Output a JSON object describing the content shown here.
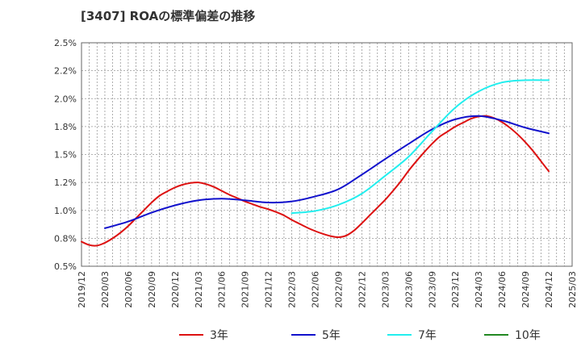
{
  "chart_data": {
    "type": "line",
    "title": "[3407]  ROAの標準偏差の推移",
    "xlabel": "",
    "ylabel": "",
    "x_ticks": [
      "2019/12",
      "2020/03",
      "2020/06",
      "2020/09",
      "2020/12",
      "2021/03",
      "2021/06",
      "2021/09",
      "2021/12",
      "2022/03",
      "2022/06",
      "2022/09",
      "2022/12",
      "2023/03",
      "2023/06",
      "2023/09",
      "2023/12",
      "2024/03",
      "2024/06",
      "2024/09",
      "2024/12",
      "2025/03"
    ],
    "y_ticks": [
      "0.5%",
      "0.8%",
      "1.0%",
      "1.2%",
      "1.5%",
      "1.8%",
      "2.0%",
      "2.2%",
      "2.5%"
    ],
    "ylim": [
      0.5,
      2.5
    ],
    "grid": true,
    "legend_position": "bottom",
    "series": [
      {
        "name": "3年",
        "color": "#dd1111",
        "x": [
          "2019/12",
          "2020/01",
          "2020/02",
          "2020/03",
          "2020/04",
          "2020/05",
          "2020/06",
          "2020/07",
          "2020/08",
          "2020/09",
          "2020/10",
          "2020/11",
          "2020/12",
          "2021/01",
          "2021/02",
          "2021/03",
          "2021/04",
          "2021/05",
          "2021/06",
          "2021/07",
          "2021/08",
          "2021/09",
          "2021/10",
          "2021/11",
          "2021/12",
          "2022/01",
          "2022/02",
          "2022/03",
          "2022/04",
          "2022/05",
          "2022/06",
          "2022/07",
          "2022/08",
          "2022/09",
          "2022/10",
          "2022/11",
          "2022/12",
          "2023/01",
          "2023/02",
          "2023/03",
          "2023/04",
          "2023/05",
          "2023/06",
          "2023/07",
          "2023/08",
          "2023/09",
          "2023/10",
          "2023/11",
          "2023/12",
          "2024/01",
          "2024/02",
          "2024/03",
          "2024/04",
          "2024/05",
          "2024/06",
          "2024/07",
          "2024/08",
          "2024/09",
          "2024/10",
          "2024/11",
          "2024/12"
        ],
        "values": [
          0.72,
          0.69,
          0.685,
          0.71,
          0.75,
          0.8,
          0.86,
          0.93,
          1.0,
          1.07,
          1.13,
          1.17,
          1.205,
          1.23,
          1.245,
          1.25,
          1.235,
          1.21,
          1.175,
          1.14,
          1.11,
          1.08,
          1.055,
          1.03,
          1.01,
          0.985,
          0.955,
          0.915,
          0.88,
          0.845,
          0.815,
          0.79,
          0.77,
          0.76,
          0.775,
          0.82,
          0.885,
          0.955,
          1.025,
          1.095,
          1.175,
          1.26,
          1.355,
          1.44,
          1.52,
          1.595,
          1.66,
          1.705,
          1.75,
          1.785,
          1.82,
          1.84,
          1.845,
          1.825,
          1.79,
          1.74,
          1.68,
          1.61,
          1.53,
          1.44,
          1.35
        ]
      },
      {
        "name": "5年",
        "color": "#1111cc",
        "x": [
          "2020/03",
          "2020/06",
          "2020/09",
          "2020/12",
          "2021/03",
          "2021/06",
          "2021/09",
          "2021/12",
          "2022/03",
          "2022/06",
          "2022/09",
          "2022/12",
          "2023/03",
          "2023/06",
          "2023/09",
          "2023/12",
          "2024/03",
          "2024/06",
          "2024/09",
          "2024/12"
        ],
        "values": [
          0.84,
          0.9,
          0.98,
          1.045,
          1.09,
          1.105,
          1.09,
          1.07,
          1.08,
          1.125,
          1.19,
          1.32,
          1.46,
          1.595,
          1.725,
          1.815,
          1.845,
          1.805,
          1.74,
          1.69
        ]
      },
      {
        "name": "7年",
        "color": "#22eeee",
        "x": [
          "2022/03",
          "2022/06",
          "2022/09",
          "2022/12",
          "2023/03",
          "2023/06",
          "2023/09",
          "2023/12",
          "2024/03",
          "2024/06",
          "2024/09",
          "2024/12"
        ],
        "values": [
          0.975,
          0.995,
          1.05,
          1.15,
          1.31,
          1.48,
          1.705,
          1.92,
          2.065,
          2.145,
          2.165,
          2.165
        ]
      },
      {
        "name": "10年",
        "color": "#228822",
        "x": [],
        "values": []
      }
    ]
  }
}
